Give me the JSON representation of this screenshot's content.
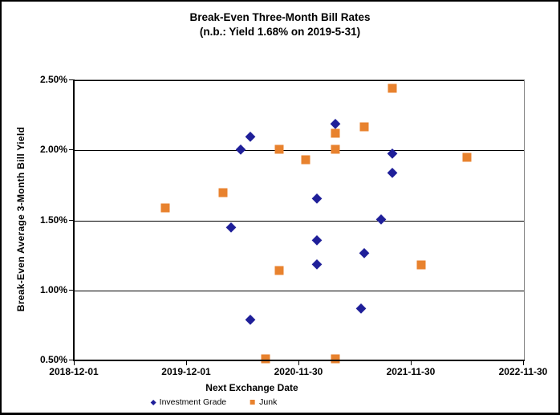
{
  "window": {
    "background": "#FFFFFF",
    "border_color": "#000000"
  },
  "title": {
    "line1": "Break-Even Three-Month Bill Rates",
    "line2": "(n.b.: Yield 1.68% on 2019-5-31)"
  },
  "chart_data": {
    "type": "scatter",
    "title": "Break-Even Three-Month Bill Rates",
    "subtitle": "(n.b.: Yield 1.68% on 2019-5-31)",
    "xlabel": "Next Exchange Date",
    "ylabel": "Break-Even Average 3-Month Bill Yield",
    "grid": "horizontal",
    "legend_position": "bottom-center",
    "x_axis": {
      "range": [
        "2018-12-01",
        "2022-11-30"
      ],
      "tick_labels": [
        "2018-12-01",
        "2019-12-01",
        "2020-11-30",
        "2021-11-30",
        "2022-11-30"
      ]
    },
    "y_axis": {
      "range": [
        0.5,
        2.5
      ],
      "unit": "%",
      "tick_labels": [
        "2.50%",
        "2.00%",
        "1.50%",
        "1.00%",
        "0.50%"
      ]
    },
    "series": [
      {
        "name": "Investment Grade",
        "marker": "diamond",
        "color": "#1F1F99",
        "points": [
          {
            "x": "2020-04-23",
            "y": 1.45
          },
          {
            "x": "2020-05-24",
            "y": 2.01
          },
          {
            "x": "2020-06-24",
            "y": 2.1
          },
          {
            "x": "2020-06-24",
            "y": 0.79
          },
          {
            "x": "2021-01-27",
            "y": 1.66
          },
          {
            "x": "2021-01-27",
            "y": 1.36
          },
          {
            "x": "2021-01-27",
            "y": 1.19
          },
          {
            "x": "2021-03-27",
            "y": 2.19
          },
          {
            "x": "2021-06-19",
            "y": 0.87
          },
          {
            "x": "2021-06-28",
            "y": 1.27
          },
          {
            "x": "2021-08-24",
            "y": 1.51
          },
          {
            "x": "2021-09-29",
            "y": 1.98
          },
          {
            "x": "2021-09-29",
            "y": 1.84
          }
        ]
      },
      {
        "name": "Junk",
        "marker": "square",
        "color": "#E8822E",
        "points": [
          {
            "x": "2019-09-22",
            "y": 1.59
          },
          {
            "x": "2020-03-27",
            "y": 1.7
          },
          {
            "x": "2020-08-12",
            "y": 0.51
          },
          {
            "x": "2020-09-25",
            "y": 2.01
          },
          {
            "x": "2020-09-25",
            "y": 1.14
          },
          {
            "x": "2020-12-21",
            "y": 1.93
          },
          {
            "x": "2021-03-27",
            "y": 2.12
          },
          {
            "x": "2021-03-27",
            "y": 2.01
          },
          {
            "x": "2021-03-27",
            "y": 0.51
          },
          {
            "x": "2021-06-28",
            "y": 2.17
          },
          {
            "x": "2021-09-29",
            "y": 2.44
          },
          {
            "x": "2021-12-30",
            "y": 1.18
          },
          {
            "x": "2022-05-30",
            "y": 1.95
          }
        ]
      }
    ]
  }
}
